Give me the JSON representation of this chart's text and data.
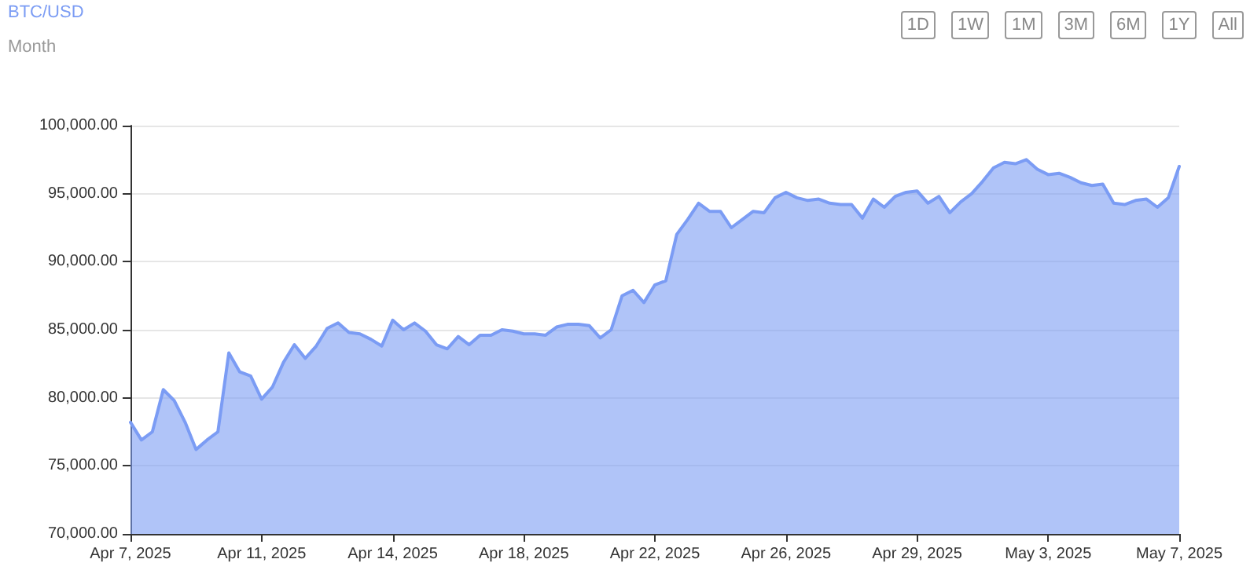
{
  "chart_data": {
    "type": "area",
    "title": "BTC/USD",
    "subtitle": "Month",
    "annotations": [
      "1D",
      "1W",
      "1M",
      "3M",
      "6M",
      "1Y",
      "All"
    ],
    "categories": [
      "Apr 7, 2025",
      null,
      null,
      null,
      null,
      null,
      null,
      null,
      null,
      null,
      null,
      null,
      "Apr 11, 2025",
      null,
      null,
      null,
      null,
      null,
      null,
      null,
      null,
      null,
      null,
      null,
      "Apr 14, 2025",
      null,
      null,
      null,
      null,
      null,
      null,
      null,
      null,
      null,
      null,
      null,
      "Apr 18, 2025",
      null,
      null,
      null,
      null,
      null,
      null,
      null,
      null,
      null,
      null,
      null,
      "Apr 22, 2025",
      null,
      null,
      null,
      null,
      null,
      null,
      null,
      null,
      null,
      null,
      null,
      "Apr 26, 2025",
      null,
      null,
      null,
      null,
      null,
      null,
      null,
      null,
      null,
      null,
      null,
      "Apr 29, 2025",
      null,
      null,
      null,
      null,
      null,
      null,
      null,
      null,
      null,
      null,
      null,
      "May 3, 2025",
      null,
      null,
      null,
      null,
      null,
      null,
      null,
      null,
      null,
      null,
      null,
      "May 7, 2025"
    ],
    "series": [
      {
        "color": "#7b9cf4",
        "values": [
          78200,
          76900,
          77500,
          80600,
          79800,
          78200,
          76200,
          76900,
          77500,
          83300,
          81900,
          81600,
          79900,
          80800,
          82600,
          83900,
          82900,
          83800,
          85100,
          85500,
          84800,
          84700,
          84300,
          83800,
          85700,
          85000,
          85500,
          84900,
          83900,
          83600,
          84500,
          83900,
          84600,
          84600,
          85000,
          84900,
          84700,
          84700,
          84600,
          85200,
          85400,
          85400,
          85300,
          84400,
          85000,
          87500,
          87900,
          87000,
          88300,
          88600,
          92000,
          93100,
          94300,
          93700,
          93700,
          92500,
          93100,
          93700,
          93600,
          94700,
          95100,
          94700,
          94500,
          94600,
          94300,
          94200,
          94200,
          93200,
          94600,
          94000,
          94800,
          95100,
          95200,
          94300,
          94800,
          93600,
          94400,
          95000,
          95900,
          96900,
          97300,
          97200,
          97500,
          96800,
          96400,
          96500,
          96200,
          95800,
          95600,
          95700,
          94300,
          94200,
          94500,
          94600,
          94000,
          94700,
          97000
        ]
      }
    ],
    "ylim": [
      70000,
      100000
    ],
    "yticks": [
      {
        "value": 70000,
        "label": "70,000.00"
      },
      {
        "value": 75000,
        "label": "75,000.00"
      },
      {
        "value": 80000,
        "label": "80,000.00"
      },
      {
        "value": 85000,
        "label": "85,000.00"
      },
      {
        "value": 90000,
        "label": "90,000.00"
      },
      {
        "value": 95000,
        "label": "95,000.00"
      },
      {
        "value": 100000,
        "label": "100,000.00"
      }
    ],
    "grid": "y",
    "marker": "none",
    "line_style": "solid"
  }
}
